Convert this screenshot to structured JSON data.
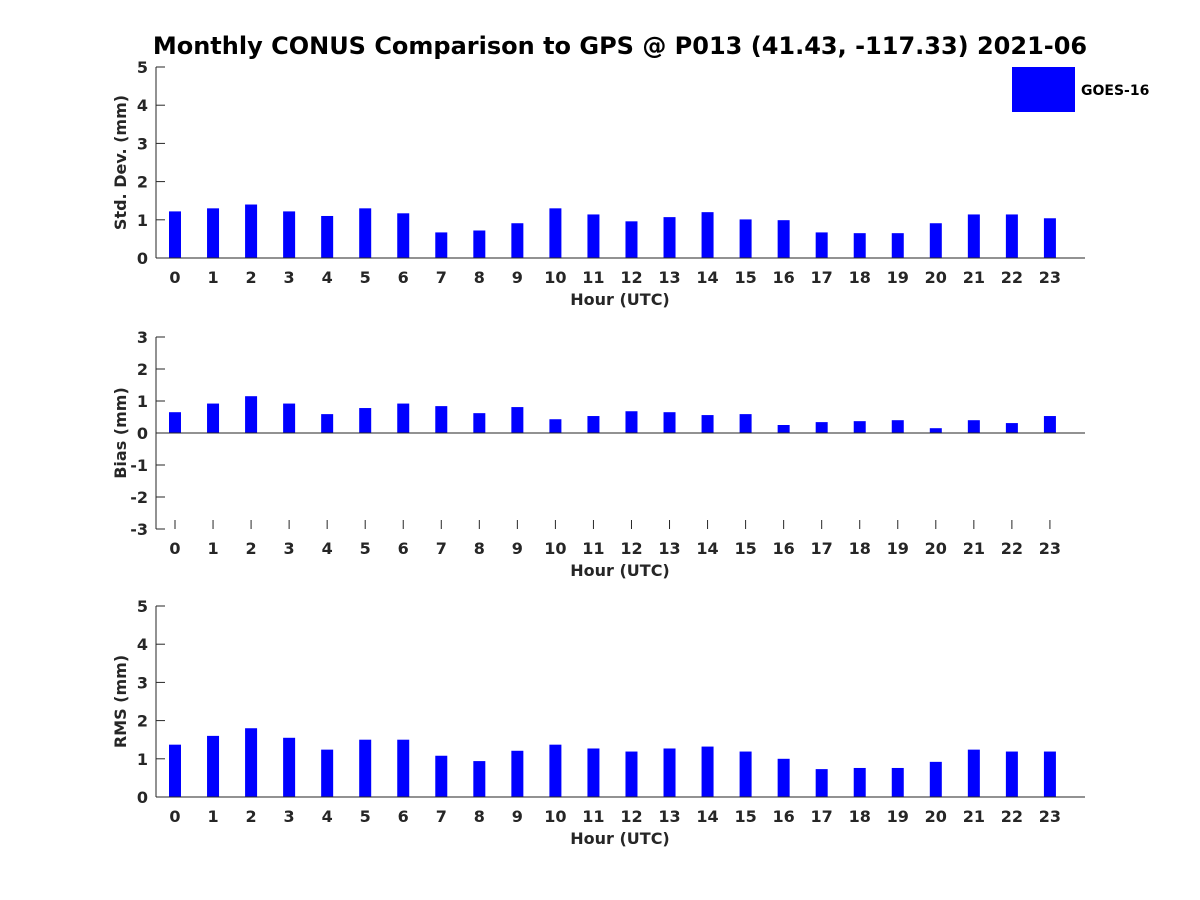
{
  "title": "Monthly CONUS Comparison to GPS @ P013 (41.43, -117.33) 2021-06",
  "legend": {
    "label": "GOES-16",
    "color": "#0000ff"
  },
  "chart_data": [
    {
      "type": "bar",
      "categories": [
        "0",
        "1",
        "2",
        "3",
        "4",
        "5",
        "6",
        "7",
        "8",
        "9",
        "10",
        "11",
        "12",
        "13",
        "14",
        "15",
        "16",
        "17",
        "18",
        "19",
        "20",
        "21",
        "22",
        "23"
      ],
      "series": [
        {
          "name": "GOES-16",
          "color": "#0000ff",
          "values": [
            1.22,
            1.3,
            1.4,
            1.22,
            1.1,
            1.3,
            1.17,
            0.67,
            0.72,
            0.91,
            1.3,
            1.14,
            0.96,
            1.07,
            1.2,
            1.01,
            0.99,
            0.67,
            0.65,
            0.65,
            0.91,
            1.14,
            1.14,
            1.04
          ]
        }
      ],
      "xlabel": "Hour (UTC)",
      "ylabel": "Std. Dev. (mm)",
      "ylim": [
        0,
        5
      ],
      "yticks": [
        "0",
        "1",
        "2",
        "3",
        "4",
        "5"
      ],
      "grid": false
    },
    {
      "type": "bar",
      "categories": [
        "0",
        "1",
        "2",
        "3",
        "4",
        "5",
        "6",
        "7",
        "8",
        "9",
        "10",
        "11",
        "12",
        "13",
        "14",
        "15",
        "16",
        "17",
        "18",
        "19",
        "20",
        "21",
        "22",
        "23"
      ],
      "series": [
        {
          "name": "GOES-16",
          "color": "#0000ff",
          "values": [
            0.65,
            0.92,
            1.15,
            0.92,
            0.59,
            0.78,
            0.92,
            0.84,
            0.62,
            0.81,
            0.43,
            0.53,
            0.68,
            0.65,
            0.56,
            0.59,
            0.25,
            0.34,
            0.37,
            0.4,
            0.15,
            0.4,
            0.31,
            0.53
          ]
        }
      ],
      "xlabel": "Hour (UTC)",
      "ylabel": "Bias (mm)",
      "ylim": [
        -3,
        3
      ],
      "yticks": [
        "-3",
        "-2",
        "-1",
        "0",
        "1",
        "2",
        "3"
      ],
      "grid": false
    },
    {
      "type": "bar",
      "categories": [
        "0",
        "1",
        "2",
        "3",
        "4",
        "5",
        "6",
        "7",
        "8",
        "9",
        "10",
        "11",
        "12",
        "13",
        "14",
        "15",
        "16",
        "17",
        "18",
        "19",
        "20",
        "21",
        "22",
        "23"
      ],
      "series": [
        {
          "name": "GOES-16",
          "color": "#0000ff",
          "values": [
            1.37,
            1.6,
            1.8,
            1.55,
            1.24,
            1.5,
            1.5,
            1.08,
            0.94,
            1.21,
            1.37,
            1.27,
            1.19,
            1.27,
            1.32,
            1.19,
            1.0,
            0.73,
            0.76,
            0.76,
            0.92,
            1.24,
            1.19,
            1.19
          ]
        }
      ],
      "xlabel": "Hour (UTC)",
      "ylabel": "RMS (mm)",
      "ylim": [
        0,
        5
      ],
      "yticks": [
        "0",
        "1",
        "2",
        "3",
        "4",
        "5"
      ],
      "grid": false
    }
  ]
}
